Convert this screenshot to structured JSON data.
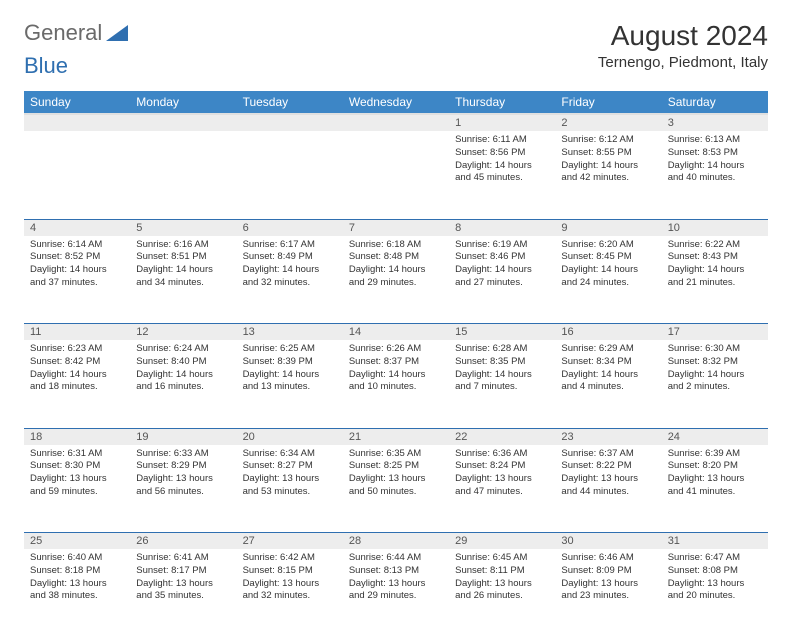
{
  "brand": {
    "part1": "General",
    "part2": "Blue"
  },
  "title": "August 2024",
  "location": "Ternengo, Piedmont, Italy",
  "colors": {
    "header_bg": "#3d86c6",
    "header_text": "#ffffff",
    "border": "#2f6fb0",
    "daynum_bg": "#ededed",
    "text": "#333333",
    "logo_gray": "#6a6a6a",
    "logo_blue": "#2f6fb0"
  },
  "weekdays": [
    "Sunday",
    "Monday",
    "Tuesday",
    "Wednesday",
    "Thursday",
    "Friday",
    "Saturday"
  ],
  "weeks": [
    [
      null,
      null,
      null,
      null,
      {
        "n": "1",
        "sr": "6:11 AM",
        "ss": "8:56 PM",
        "dl": "14 hours and 45 minutes."
      },
      {
        "n": "2",
        "sr": "6:12 AM",
        "ss": "8:55 PM",
        "dl": "14 hours and 42 minutes."
      },
      {
        "n": "3",
        "sr": "6:13 AM",
        "ss": "8:53 PM",
        "dl": "14 hours and 40 minutes."
      }
    ],
    [
      {
        "n": "4",
        "sr": "6:14 AM",
        "ss": "8:52 PM",
        "dl": "14 hours and 37 minutes."
      },
      {
        "n": "5",
        "sr": "6:16 AM",
        "ss": "8:51 PM",
        "dl": "14 hours and 34 minutes."
      },
      {
        "n": "6",
        "sr": "6:17 AM",
        "ss": "8:49 PM",
        "dl": "14 hours and 32 minutes."
      },
      {
        "n": "7",
        "sr": "6:18 AM",
        "ss": "8:48 PM",
        "dl": "14 hours and 29 minutes."
      },
      {
        "n": "8",
        "sr": "6:19 AM",
        "ss": "8:46 PM",
        "dl": "14 hours and 27 minutes."
      },
      {
        "n": "9",
        "sr": "6:20 AM",
        "ss": "8:45 PM",
        "dl": "14 hours and 24 minutes."
      },
      {
        "n": "10",
        "sr": "6:22 AM",
        "ss": "8:43 PM",
        "dl": "14 hours and 21 minutes."
      }
    ],
    [
      {
        "n": "11",
        "sr": "6:23 AM",
        "ss": "8:42 PM",
        "dl": "14 hours and 18 minutes."
      },
      {
        "n": "12",
        "sr": "6:24 AM",
        "ss": "8:40 PM",
        "dl": "14 hours and 16 minutes."
      },
      {
        "n": "13",
        "sr": "6:25 AM",
        "ss": "8:39 PM",
        "dl": "14 hours and 13 minutes."
      },
      {
        "n": "14",
        "sr": "6:26 AM",
        "ss": "8:37 PM",
        "dl": "14 hours and 10 minutes."
      },
      {
        "n": "15",
        "sr": "6:28 AM",
        "ss": "8:35 PM",
        "dl": "14 hours and 7 minutes."
      },
      {
        "n": "16",
        "sr": "6:29 AM",
        "ss": "8:34 PM",
        "dl": "14 hours and 4 minutes."
      },
      {
        "n": "17",
        "sr": "6:30 AM",
        "ss": "8:32 PM",
        "dl": "14 hours and 2 minutes."
      }
    ],
    [
      {
        "n": "18",
        "sr": "6:31 AM",
        "ss": "8:30 PM",
        "dl": "13 hours and 59 minutes."
      },
      {
        "n": "19",
        "sr": "6:33 AM",
        "ss": "8:29 PM",
        "dl": "13 hours and 56 minutes."
      },
      {
        "n": "20",
        "sr": "6:34 AM",
        "ss": "8:27 PM",
        "dl": "13 hours and 53 minutes."
      },
      {
        "n": "21",
        "sr": "6:35 AM",
        "ss": "8:25 PM",
        "dl": "13 hours and 50 minutes."
      },
      {
        "n": "22",
        "sr": "6:36 AM",
        "ss": "8:24 PM",
        "dl": "13 hours and 47 minutes."
      },
      {
        "n": "23",
        "sr": "6:37 AM",
        "ss": "8:22 PM",
        "dl": "13 hours and 44 minutes."
      },
      {
        "n": "24",
        "sr": "6:39 AM",
        "ss": "8:20 PM",
        "dl": "13 hours and 41 minutes."
      }
    ],
    [
      {
        "n": "25",
        "sr": "6:40 AM",
        "ss": "8:18 PM",
        "dl": "13 hours and 38 minutes."
      },
      {
        "n": "26",
        "sr": "6:41 AM",
        "ss": "8:17 PM",
        "dl": "13 hours and 35 minutes."
      },
      {
        "n": "27",
        "sr": "6:42 AM",
        "ss": "8:15 PM",
        "dl": "13 hours and 32 minutes."
      },
      {
        "n": "28",
        "sr": "6:44 AM",
        "ss": "8:13 PM",
        "dl": "13 hours and 29 minutes."
      },
      {
        "n": "29",
        "sr": "6:45 AM",
        "ss": "8:11 PM",
        "dl": "13 hours and 26 minutes."
      },
      {
        "n": "30",
        "sr": "6:46 AM",
        "ss": "8:09 PM",
        "dl": "13 hours and 23 minutes."
      },
      {
        "n": "31",
        "sr": "6:47 AM",
        "ss": "8:08 PM",
        "dl": "13 hours and 20 minutes."
      }
    ]
  ],
  "labels": {
    "sunrise": "Sunrise:",
    "sunset": "Sunset:",
    "daylight": "Daylight:"
  }
}
